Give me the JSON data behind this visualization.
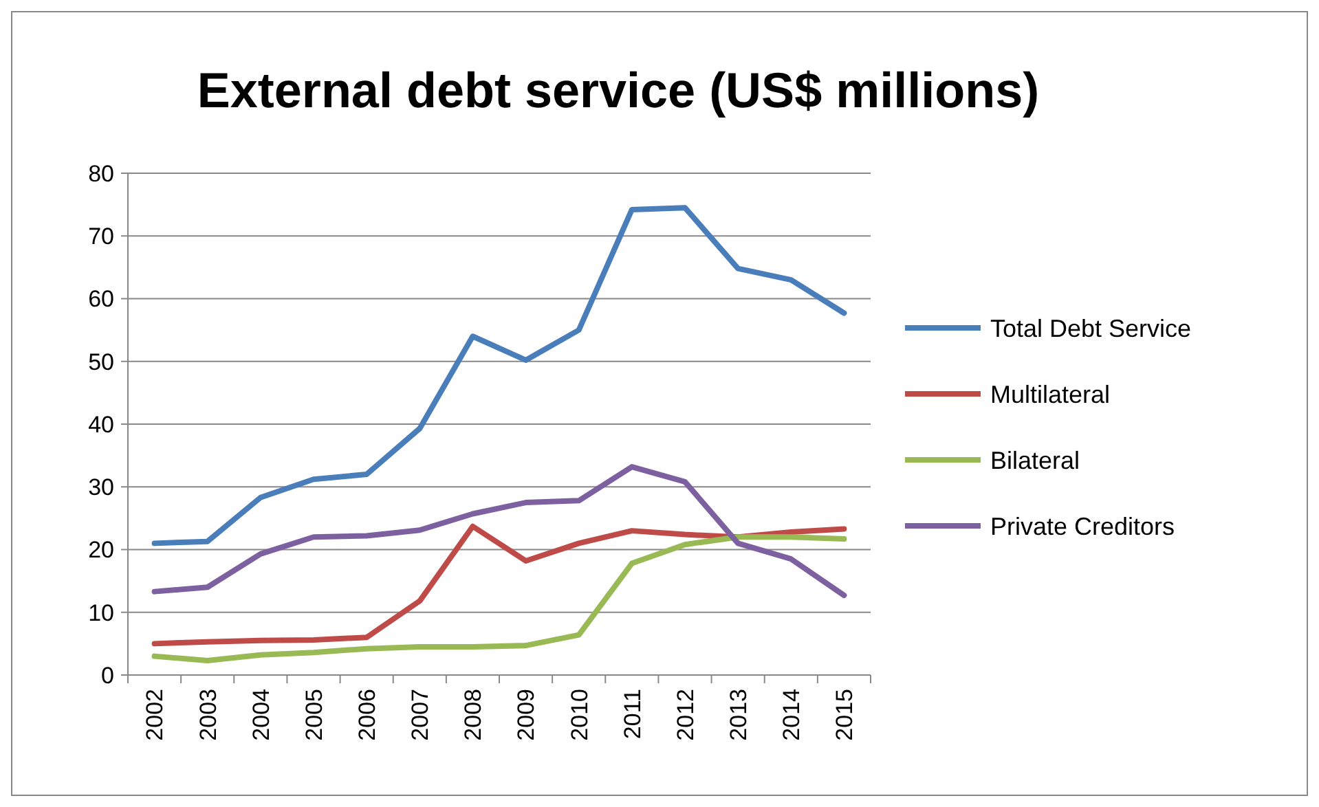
{
  "chart_data": {
    "type": "line",
    "title": "External debt service (US$ millions)",
    "categories": [
      "2002",
      "2003",
      "2004",
      "2005",
      "2006",
      "2007",
      "2008",
      "2009",
      "2010",
      "2011",
      "2012",
      "2013",
      "2014",
      "2015"
    ],
    "series": [
      {
        "name": "Total Debt Service",
        "color": "#4a7ebb",
        "values": [
          21,
          21.3,
          28.3,
          31.2,
          32,
          39.3,
          54,
          50.2,
          55,
          74.2,
          74.5,
          64.8,
          63,
          57.7
        ]
      },
      {
        "name": "Multilateral",
        "color": "#be4b48",
        "values": [
          5,
          5.3,
          5.5,
          5.6,
          6,
          11.8,
          23.7,
          18.2,
          21,
          23,
          22.4,
          22,
          22.8,
          23.3
        ]
      },
      {
        "name": "Bilateral",
        "color": "#98b954",
        "values": [
          3,
          2.3,
          3.2,
          3.6,
          4.2,
          4.5,
          4.5,
          4.7,
          6.4,
          17.8,
          20.8,
          22,
          22,
          21.7
        ]
      },
      {
        "name": "Private Creditors",
        "color": "#7d60a0",
        "values": [
          13.3,
          14,
          19.3,
          22,
          22.2,
          23.1,
          25.7,
          27.5,
          27.8,
          33.2,
          30.8,
          21,
          18.5,
          12.7
        ]
      }
    ],
    "ylim": [
      0,
      80
    ],
    "yticks": [
      0,
      10,
      20,
      30,
      40,
      50,
      60,
      70,
      80
    ],
    "grid": "y",
    "legend": "right",
    "marker": "none",
    "line_style": "solid"
  }
}
